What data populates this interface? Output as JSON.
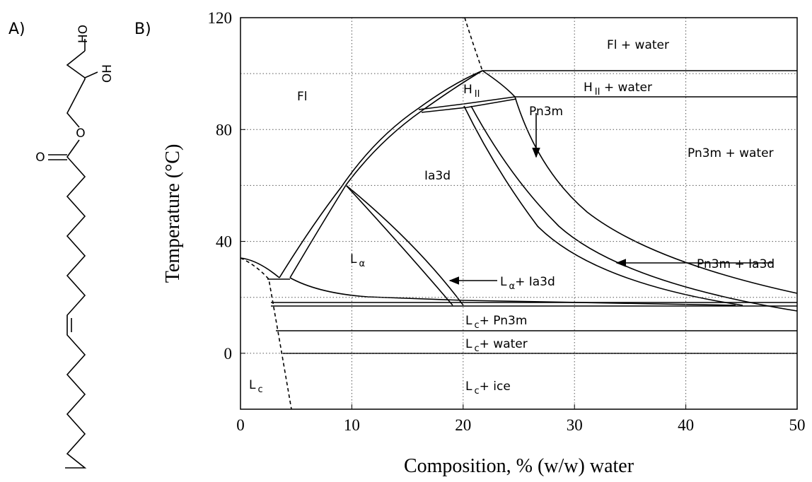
{
  "panel_labels": [
    "A)",
    "B)"
  ],
  "structure": {
    "atoms": [
      "HO",
      "OH",
      "O",
      "O"
    ]
  },
  "chart_data": {
    "type": "phase-diagram",
    "xlabel": "Composition, % (w/w) water",
    "ylabel": "Temperature (°C)",
    "xlim": [
      0,
      50
    ],
    "ylim": [
      -20,
      120
    ],
    "xticks": [
      0,
      10,
      20,
      30,
      40,
      50
    ],
    "yticks": [
      0,
      40,
      80,
      120
    ],
    "ygrid": [
      20,
      60,
      100
    ],
    "grid": true,
    "regions": [
      [
        {
          "t": "Fl + water"
        }
      ],
      [
        {
          "t": "Fl"
        }
      ],
      [
        {
          "t": "H"
        },
        {
          "sub": "II"
        }
      ],
      [
        {
          "t": "H"
        },
        {
          "sub": "II"
        },
        {
          "t": " + water"
        }
      ],
      [
        {
          "t": "Pn3m"
        }
      ],
      [
        {
          "t": "Pn3m + water"
        }
      ],
      [
        {
          "t": "Ia3d"
        }
      ],
      [
        {
          "t": "L"
        },
        {
          "sub": "α"
        }
      ],
      [
        {
          "t": "L"
        },
        {
          "sub": "α"
        },
        {
          "t": "+ Ia3d"
        }
      ],
      [
        {
          "t": "Pn3m + Ia3d"
        }
      ],
      [
        {
          "t": "L"
        },
        {
          "sub": "c"
        },
        {
          "t": "+  Pn3m"
        }
      ],
      [
        {
          "t": "L"
        },
        {
          "sub": "c"
        },
        {
          "t": "+ water"
        }
      ],
      [
        {
          "t": "L"
        },
        {
          "sub": "c"
        },
        {
          "t": "+  ice"
        }
      ],
      [
        {
          "t": "L"
        },
        {
          "sub": "c"
        }
      ]
    ]
  }
}
